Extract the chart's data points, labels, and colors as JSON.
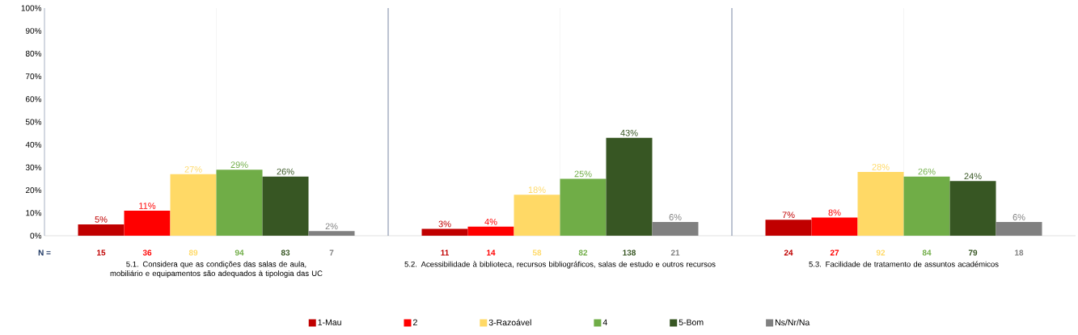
{
  "chart_data": {
    "type": "bar",
    "categories": [
      "5.1. Considera que as condições das salas de aula, mobiliário e equipamentos são adequados à tipologia das UC",
      "5.2. Acessibilidade à biblioteca, recursos bibliográficos, salas de estudo e outros recursos",
      "5.3. Facilidade de tratamento de assuntos académicos"
    ],
    "series": [
      {
        "name": "1-Mau",
        "color": "#c00000",
        "values": [
          5,
          3,
          7
        ],
        "value_labels": [
          "5%",
          "3%",
          "7%"
        ]
      },
      {
        "name": "2",
        "color": "#ff0000",
        "values": [
          11,
          4,
          8
        ],
        "value_labels": [
          "11%",
          "4%",
          "8%"
        ]
      },
      {
        "name": "3-Razoável",
        "color": "#ffd966",
        "values": [
          27,
          18,
          28
        ],
        "value_labels": [
          "27%",
          "18%",
          "28%"
        ]
      },
      {
        "name": "4",
        "color": "#70ad47",
        "values": [
          29,
          25,
          26
        ],
        "value_labels": [
          "29%",
          "25%",
          "26%"
        ]
      },
      {
        "name": "5-Bom",
        "color": "#375623",
        "values": [
          26,
          43,
          24
        ],
        "value_labels": [
          "26%",
          "43%",
          "24%"
        ]
      },
      {
        "name": "Ns/Nr/Na",
        "color": "#808080",
        "values": [
          2,
          6,
          6
        ],
        "value_labels": [
          "2%",
          "6%",
          "6%"
        ]
      }
    ],
    "ylim": [
      0,
      100
    ],
    "yticks": [
      {
        "value": 0,
        "label": "0%"
      },
      {
        "value": 10,
        "label": "10%"
      },
      {
        "value": 20,
        "label": "20%"
      },
      {
        "value": 30,
        "label": "30%"
      },
      {
        "value": 40,
        "label": "40%"
      },
      {
        "value": 50,
        "label": "50%"
      },
      {
        "value": 60,
        "label": "60%"
      },
      {
        "value": 70,
        "label": "70%"
      },
      {
        "value": 80,
        "label": "80%"
      },
      {
        "value": 90,
        "label": "90%"
      },
      {
        "value": 100,
        "label": "100%"
      }
    ],
    "grid": "x",
    "legend": "bottom",
    "annotations": [
      "N =",
      "15",
      "36",
      "89",
      "94",
      "83",
      "7",
      "11",
      "14",
      "58",
      "82",
      "138",
      "21",
      "24",
      "27",
      "92",
      "84",
      "79",
      "18"
    ]
  }
}
